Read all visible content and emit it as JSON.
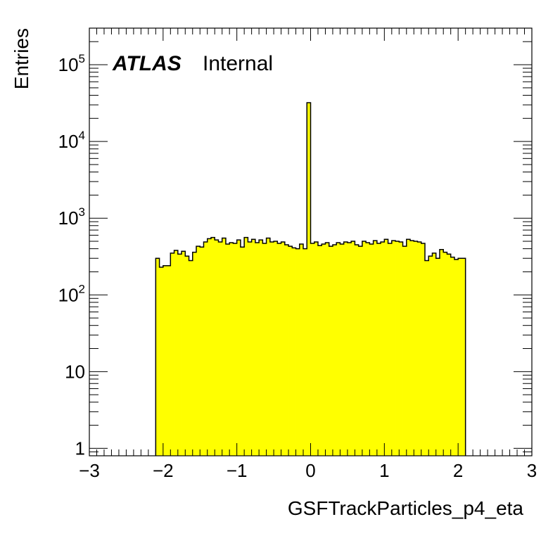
{
  "chart_data": {
    "type": "histogram",
    "xlabel": "GSFTrackParticles_p4_eta",
    "ylabel": "Entries",
    "label_atlas": "ATLAS",
    "label_status": "Internal",
    "x_range": [
      -3,
      3
    ],
    "y_range": [
      0.8,
      300000
    ],
    "y_scale": "log",
    "x_ticks": [
      {
        "value": -3,
        "label": "−3"
      },
      {
        "value": -2,
        "label": "−2"
      },
      {
        "value": -1,
        "label": "−1"
      },
      {
        "value": 0,
        "label": "0"
      },
      {
        "value": 1,
        "label": "1"
      },
      {
        "value": 2,
        "label": "2"
      },
      {
        "value": 3,
        "label": "3"
      }
    ],
    "y_ticks": [
      {
        "value": 1,
        "base": "1",
        "exp": ""
      },
      {
        "value": 10,
        "base": "10",
        "exp": ""
      },
      {
        "value": 100,
        "base": "10",
        "exp": "2"
      },
      {
        "value": 1000,
        "base": "10",
        "exp": "3"
      },
      {
        "value": 10000,
        "base": "10",
        "exp": "4"
      },
      {
        "value": 100000,
        "base": "10",
        "exp": "5"
      }
    ],
    "fill_color": "#ffff00",
    "line_color": "#000000",
    "bin_width": 0.05,
    "bin_low_edges": [
      -2.1,
      -2.05,
      -2.0,
      -1.95,
      -1.9,
      -1.85,
      -1.8,
      -1.75,
      -1.7,
      -1.65,
      -1.6,
      -1.55,
      -1.5,
      -1.45,
      -1.4,
      -1.35,
      -1.3,
      -1.25,
      -1.2,
      -1.15,
      -1.1,
      -1.05,
      -1.0,
      -0.95,
      -0.9,
      -0.85,
      -0.8,
      -0.75,
      -0.7,
      -0.65,
      -0.6,
      -0.55,
      -0.5,
      -0.45,
      -0.4,
      -0.35,
      -0.3,
      -0.25,
      -0.2,
      -0.15,
      -0.1,
      -0.05,
      0.0,
      0.05,
      0.1,
      0.15,
      0.2,
      0.25,
      0.3,
      0.35,
      0.4,
      0.45,
      0.5,
      0.55,
      0.6,
      0.65,
      0.7,
      0.75,
      0.8,
      0.85,
      0.9,
      0.95,
      1.0,
      1.05,
      1.1,
      1.15,
      1.2,
      1.25,
      1.3,
      1.35,
      1.4,
      1.45,
      1.5,
      1.55,
      1.6,
      1.65,
      1.7,
      1.75,
      1.8,
      1.85,
      1.9,
      1.95,
      2.0,
      2.05
    ],
    "values": [
      300,
      230,
      240,
      240,
      350,
      380,
      340,
      370,
      320,
      280,
      360,
      430,
      420,
      490,
      540,
      560,
      520,
      490,
      550,
      460,
      480,
      470,
      520,
      420,
      560,
      490,
      530,
      480,
      520,
      470,
      550,
      490,
      500,
      470,
      490,
      450,
      430,
      410,
      400,
      460,
      400,
      32000,
      470,
      490,
      440,
      460,
      480,
      430,
      450,
      480,
      460,
      490,
      480,
      500,
      450,
      430,
      500,
      480,
      460,
      510,
      470,
      490,
      530,
      470,
      510,
      500,
      490,
      430,
      530,
      510,
      500,
      490,
      470,
      280,
      320,
      350,
      300,
      390,
      360,
      340,
      310,
      290,
      300,
      300
    ]
  }
}
